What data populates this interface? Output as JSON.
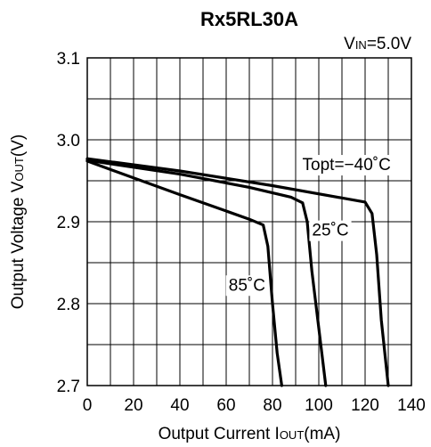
{
  "chart_data": {
    "type": "line",
    "title": "Rx5RL30A",
    "condition": {
      "main": "V",
      "sub": "IN",
      "rest": "=5.0V"
    },
    "xlabel": {
      "main": "Output Current I",
      "sub": "OUT",
      "rest": "(mA)"
    },
    "ylabel": {
      "main": "Output Voltage V",
      "sub": "OUT",
      "rest": "(V)"
    },
    "xlim": [
      0,
      140
    ],
    "ylim": [
      2.7,
      3.1
    ],
    "x_ticks": [
      "0",
      "20",
      "40",
      "60",
      "80",
      "100",
      "120",
      "140"
    ],
    "x_tick_values": [
      0,
      20,
      40,
      60,
      80,
      100,
      120,
      140
    ],
    "y_ticks": [
      "2.7",
      "2.8",
      "2.9",
      "3.0",
      "3.1"
    ],
    "y_tick_values": [
      2.7,
      2.8,
      2.9,
      3.0,
      3.1
    ],
    "grid": true,
    "x_grid_step": 10,
    "y_grid_step": 0.05,
    "series": [
      {
        "name": "Topt=−40˚C",
        "x": [
          0,
          40,
          80,
          110,
          120,
          123,
          125,
          127,
          130
        ],
        "y": [
          2.977,
          2.962,
          2.944,
          2.929,
          2.924,
          2.91,
          2.86,
          2.78,
          2.7
        ]
      },
      {
        "name": "25˚C",
        "x": [
          0,
          40,
          70,
          88,
          93,
          95,
          97,
          100,
          103
        ],
        "y": [
          2.975,
          2.958,
          2.942,
          2.93,
          2.923,
          2.9,
          2.84,
          2.77,
          2.7
        ]
      },
      {
        "name": "85˚C",
        "x": [
          0,
          40,
          70,
          76,
          78,
          80,
          82,
          84
        ],
        "y": [
          2.974,
          2.933,
          2.903,
          2.896,
          2.87,
          2.8,
          2.74,
          2.7
        ]
      }
    ],
    "annotations": [
      {
        "text": "Topt=−40˚C",
        "x": 112,
        "y": 2.963
      },
      {
        "text": "25˚C",
        "x": 105,
        "y": 2.883
      },
      {
        "text": "85˚C",
        "x": 69,
        "y": 2.816
      }
    ]
  }
}
